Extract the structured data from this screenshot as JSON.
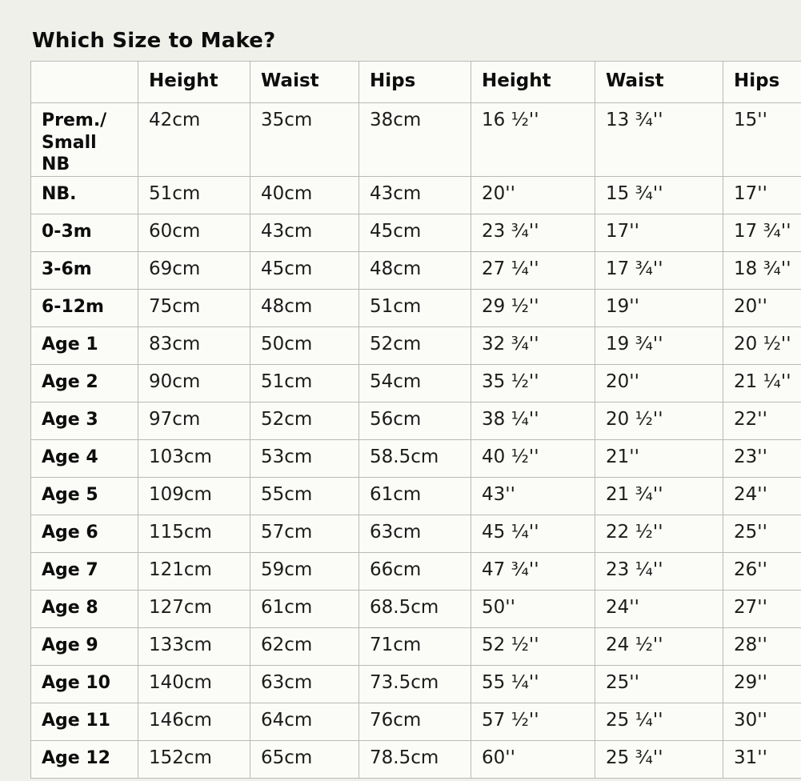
{
  "page": {
    "title": "Which Size to Make?"
  },
  "colors": {
    "page_background": "#f0f0ea",
    "cell_background": "#fbfbf7",
    "border": "#b9b9b9",
    "text": "#1c1c1c"
  },
  "table": {
    "headers": [
      "",
      "Height",
      "Waist",
      "Hips",
      "Height",
      "Waist",
      "Hips"
    ],
    "rows": [
      {
        "label": "Prem./\nSmall NB",
        "height_cm": "42cm",
        "waist_cm": "35cm",
        "hips_cm": "38cm",
        "height_in": "16 ½''",
        "waist_in": "13 ¾''",
        "hips_in": "15''"
      },
      {
        "label": "NB.",
        "height_cm": "51cm",
        "waist_cm": "40cm",
        "hips_cm": "43cm",
        "height_in": "20''",
        "waist_in": "15 ¾''",
        "hips_in": "17''"
      },
      {
        "label": "0-3m",
        "height_cm": "60cm",
        "waist_cm": "43cm",
        "hips_cm": "45cm",
        "height_in": "23 ¾''",
        "waist_in": "17''",
        "hips_in": "17 ¾''"
      },
      {
        "label": "3-6m",
        "height_cm": "69cm",
        "waist_cm": "45cm",
        "hips_cm": "48cm",
        "height_in": "27 ¼''",
        "waist_in": "17 ¾''",
        "hips_in": "18 ¾''"
      },
      {
        "label": "6-12m",
        "height_cm": "75cm",
        "waist_cm": "48cm",
        "hips_cm": "51cm",
        "height_in": "29 ½''",
        "waist_in": "19''",
        "hips_in": "20''"
      },
      {
        "label": "Age 1",
        "height_cm": "83cm",
        "waist_cm": "50cm",
        "hips_cm": "52cm",
        "height_in": "32 ¾''",
        "waist_in": "19 ¾''",
        "hips_in": "20 ½''"
      },
      {
        "label": "Age 2",
        "height_cm": "90cm",
        "waist_cm": "51cm",
        "hips_cm": "54cm",
        "height_in": "35 ½''",
        "waist_in": "20''",
        "hips_in": "21 ¼''"
      },
      {
        "label": "Age 3",
        "height_cm": "97cm",
        "waist_cm": "52cm",
        "hips_cm": "56cm",
        "height_in": "38 ¼''",
        "waist_in": "20 ½''",
        "hips_in": "22''"
      },
      {
        "label": "Age 4",
        "height_cm": "103cm",
        "waist_cm": "53cm",
        "hips_cm": "58.5cm",
        "height_in": "40 ½''",
        "waist_in": "21''",
        "hips_in": "23''"
      },
      {
        "label": "Age 5",
        "height_cm": "109cm",
        "waist_cm": "55cm",
        "hips_cm": "61cm",
        "height_in": "43''",
        "waist_in": "21 ¾''",
        "hips_in": "24''"
      },
      {
        "label": "Age 6",
        "height_cm": "115cm",
        "waist_cm": "57cm",
        "hips_cm": "63cm",
        "height_in": "45 ¼''",
        "waist_in": "22 ½''",
        "hips_in": "25''"
      },
      {
        "label": "Age 7",
        "height_cm": "121cm",
        "waist_cm": "59cm",
        "hips_cm": "66cm",
        "height_in": "47 ¾''",
        "waist_in": "23 ¼''",
        "hips_in": "26''"
      },
      {
        "label": "Age 8",
        "height_cm": "127cm",
        "waist_cm": "61cm",
        "hips_cm": "68.5cm",
        "height_in": "50''",
        "waist_in": "24''",
        "hips_in": "27''"
      },
      {
        "label": "Age 9",
        "height_cm": "133cm",
        "waist_cm": "62cm",
        "hips_cm": "71cm",
        "height_in": "52 ½''",
        "waist_in": "24 ½''",
        "hips_in": "28''"
      },
      {
        "label": "Age 10",
        "height_cm": "140cm",
        "waist_cm": "63cm",
        "hips_cm": "73.5cm",
        "height_in": "55 ¼''",
        "waist_in": "25''",
        "hips_in": "29''"
      },
      {
        "label": "Age 11",
        "height_cm": "146cm",
        "waist_cm": "64cm",
        "hips_cm": "76cm",
        "height_in": "57 ½''",
        "waist_in": "25 ¼''",
        "hips_in": "30''"
      },
      {
        "label": "Age 12",
        "height_cm": "152cm",
        "waist_cm": "65cm",
        "hips_cm": "78.5cm",
        "height_in": "60''",
        "waist_in": "25 ¾''",
        "hips_in": "31''"
      }
    ]
  }
}
